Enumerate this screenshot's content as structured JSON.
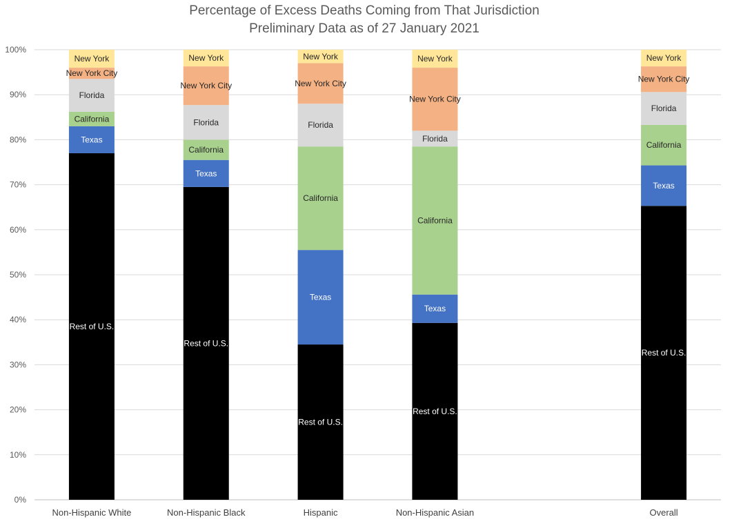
{
  "chart_data": {
    "type": "bar",
    "stacked": true,
    "title": "Percentage of Excess Deaths Coming from That Jurisdiction",
    "subtitle": "Preliminary Data as of 27 January 2021",
    "xlabel": "",
    "ylabel": "",
    "ylim": [
      0,
      100
    ],
    "yticks": [
      "0%",
      "10%",
      "20%",
      "30%",
      "40%",
      "50%",
      "60%",
      "70%",
      "80%",
      "90%",
      "100%"
    ],
    "grid": true,
    "legend": "none",
    "categories": [
      "Non-Hispanic White",
      "Non-Hispanic Black",
      "Hispanic",
      "Non-Hispanic Asian",
      "",
      "Overall"
    ],
    "series": [
      {
        "name": "Rest of U.S.",
        "color": "#000000",
        "label_color": "#ffffff",
        "values": [
          77.0,
          69.5,
          34.5,
          39.3,
          null,
          65.3
        ]
      },
      {
        "name": "Texas",
        "color": "#4472C4",
        "label_color": "#ffffff",
        "values": [
          6.0,
          6.0,
          21.0,
          6.3,
          null,
          9.0
        ]
      },
      {
        "name": "California",
        "color": "#A9D18E",
        "label_color": "#262626",
        "values": [
          3.2,
          4.5,
          23.0,
          32.9,
          null,
          9.0
        ]
      },
      {
        "name": "Florida",
        "color": "#D9D9D9",
        "label_color": "#262626",
        "values": [
          7.3,
          7.7,
          9.5,
          3.5,
          null,
          7.3
        ]
      },
      {
        "name": "New York City",
        "color": "#F4B183",
        "label_color": "#262626",
        "values": [
          2.5,
          8.6,
          9.0,
          14.0,
          null,
          5.7
        ]
      },
      {
        "name": "New York",
        "color": "#FFE699",
        "label_color": "#262626",
        "values": [
          4.0,
          3.7,
          3.0,
          4.0,
          null,
          3.7
        ]
      }
    ]
  }
}
